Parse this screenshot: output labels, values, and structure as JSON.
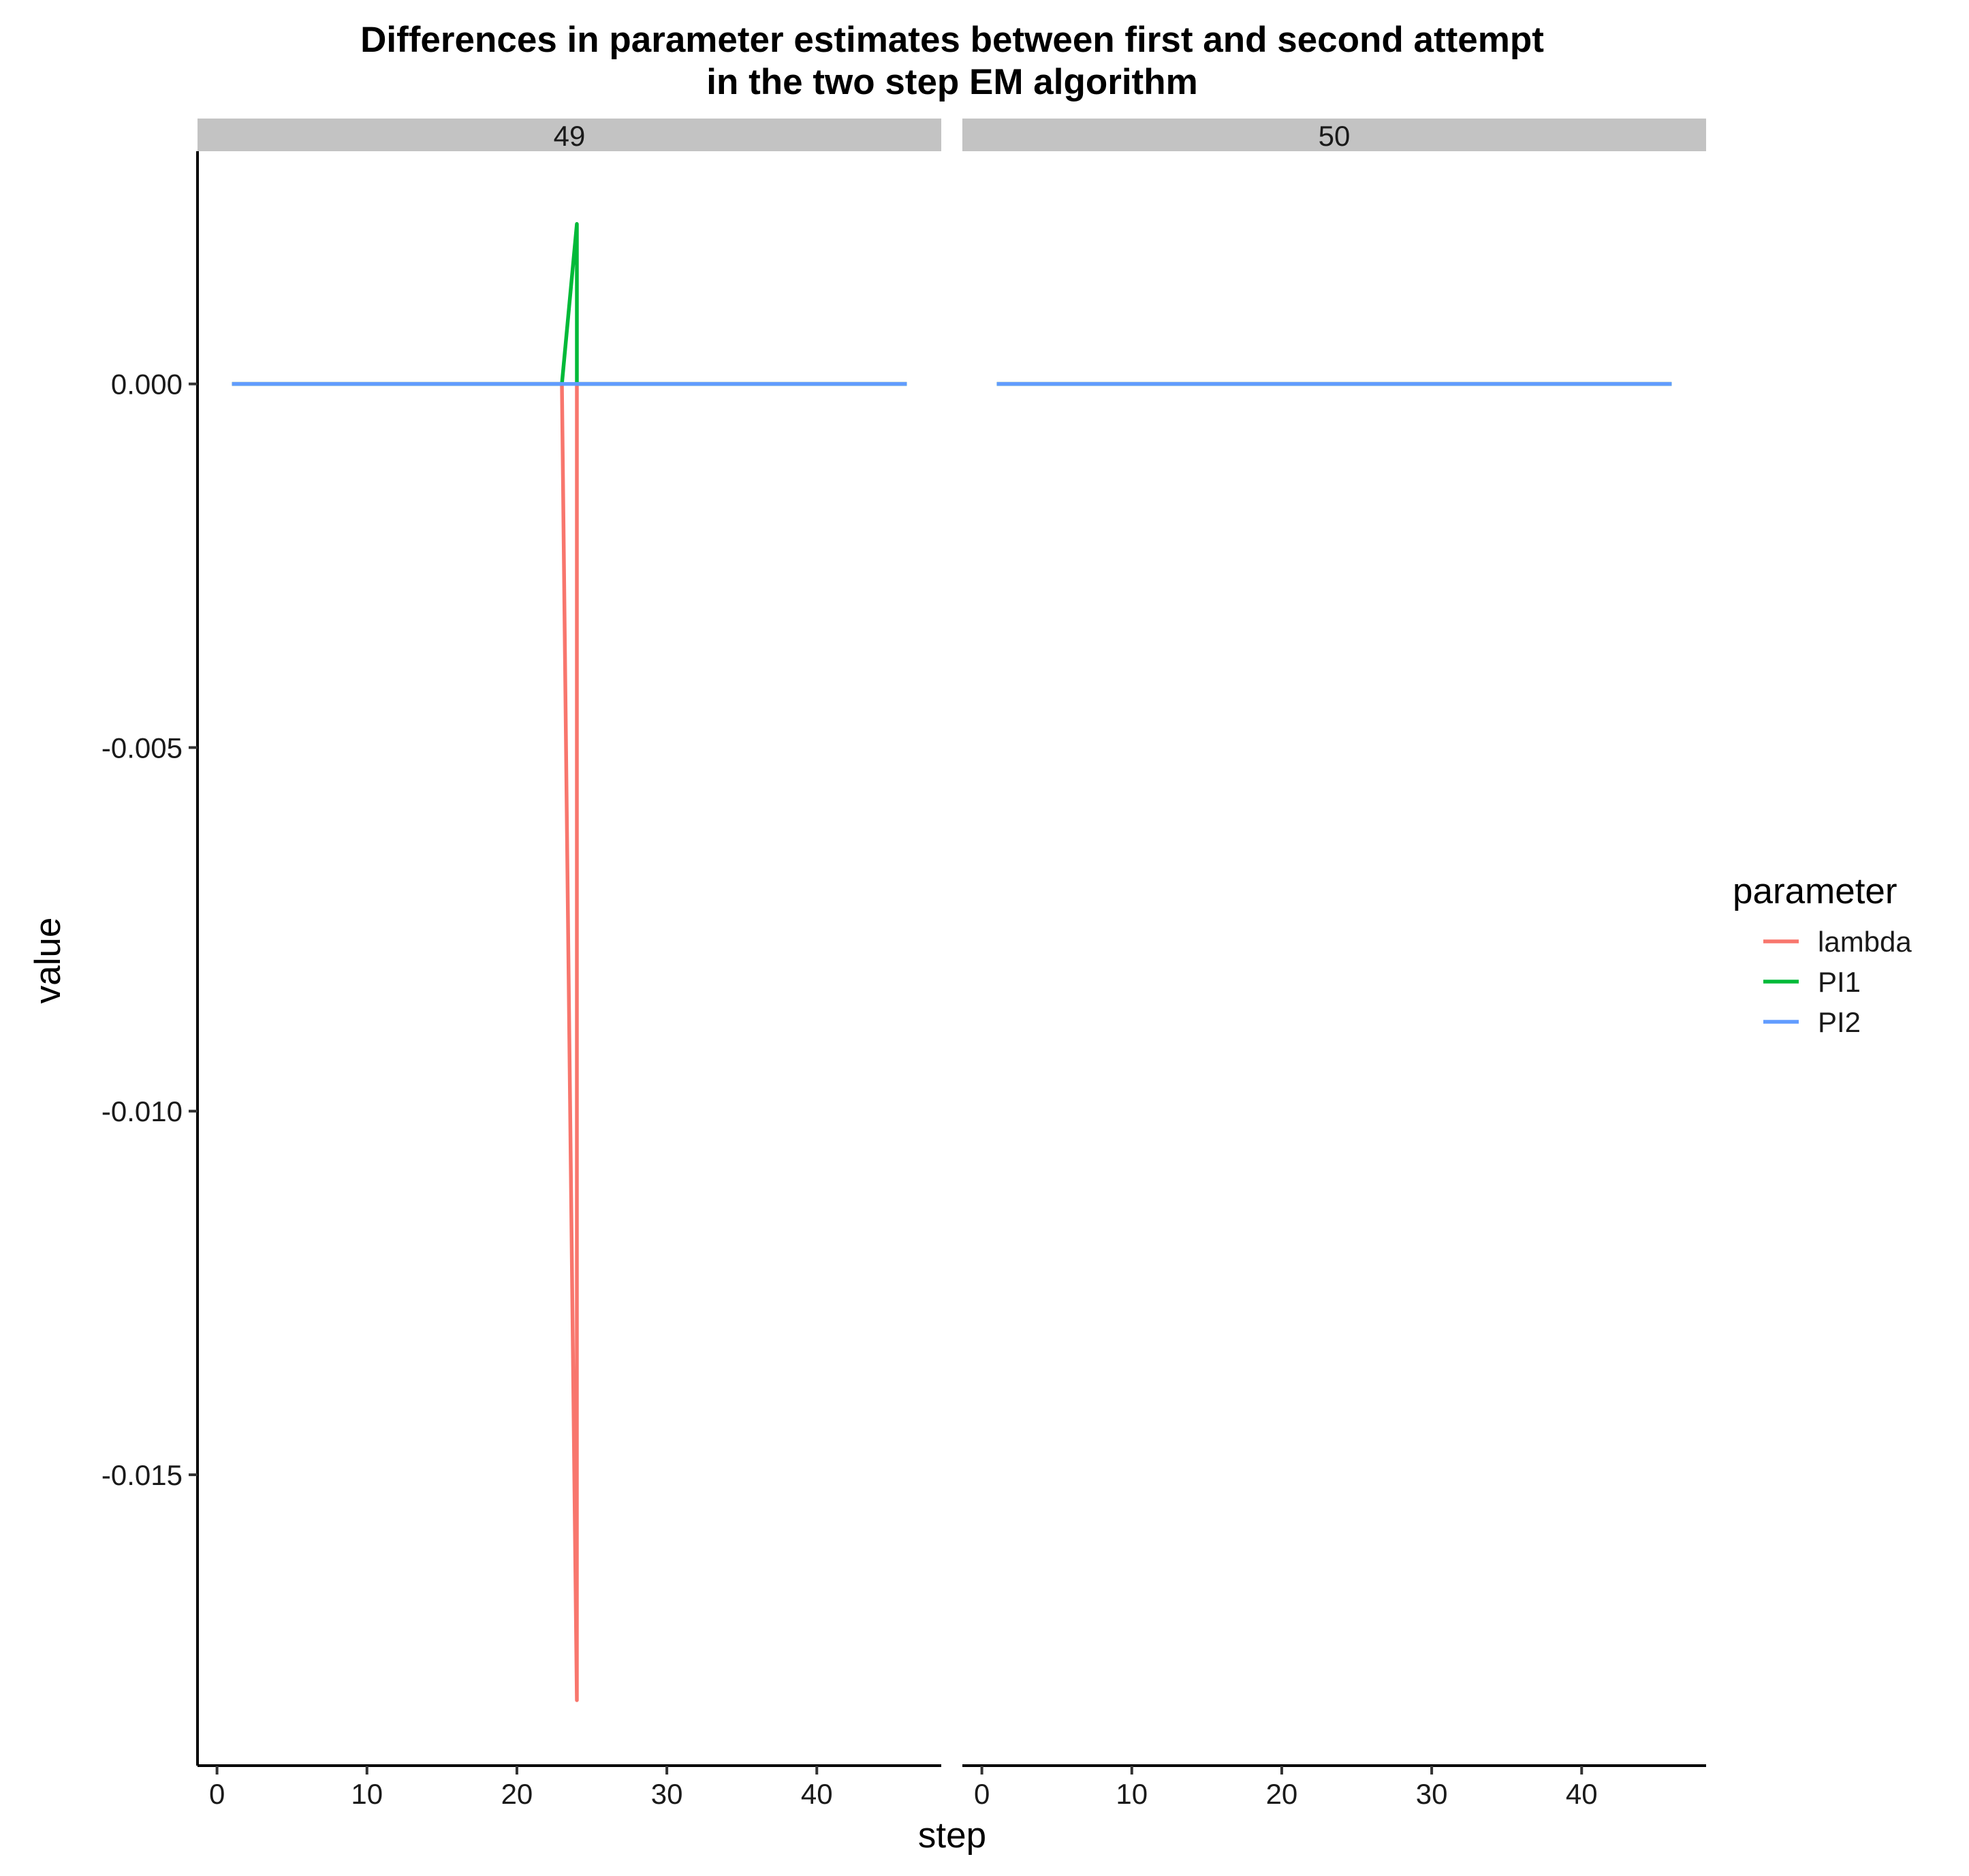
{
  "chart_data": {
    "type": "line",
    "title": "Differences in parameter estimates between first and second attempt",
    "subtitle": "in the two step EM algorithm",
    "xlabel": "step",
    "ylabel": "value",
    "xlim": [
      -1.3,
      48.3
    ],
    "ylim": [
      -0.019,
      0.0032
    ],
    "x_ticks": [
      0,
      10,
      20,
      30,
      40
    ],
    "y_ticks": [
      0.0,
      -0.005,
      -0.01,
      -0.015
    ],
    "y_tick_labels": [
      "0.000",
      "-0.005",
      "-0.010",
      "-0.015"
    ],
    "legend": {
      "title": "parameter",
      "position": "right"
    },
    "grid": false,
    "series_styles": [
      {
        "name": "lambda",
        "color": "#F8766D"
      },
      {
        "name": "PI1",
        "color": "#00BA38"
      },
      {
        "name": "PI2",
        "color": "#619CFF"
      }
    ],
    "facets": [
      {
        "label": "49",
        "series": [
          {
            "name": "lambda",
            "points": [
              [
                1,
                0
              ],
              [
                23,
                0
              ],
              [
                24,
                -0.0181
              ],
              [
                24,
                0
              ],
              [
                46,
                0
              ]
            ]
          },
          {
            "name": "PI1",
            "points": [
              [
                1,
                0
              ],
              [
                23,
                0
              ],
              [
                24,
                0.0022
              ],
              [
                24,
                0
              ],
              [
                46,
                0
              ]
            ]
          },
          {
            "name": "PI2",
            "points": [
              [
                1,
                0
              ],
              [
                46,
                0
              ]
            ]
          }
        ]
      },
      {
        "label": "50",
        "series": [
          {
            "name": "lambda",
            "points": [
              [
                1,
                0
              ],
              [
                46,
                0
              ]
            ]
          },
          {
            "name": "PI1",
            "points": [
              [
                1,
                0
              ],
              [
                46,
                0
              ]
            ]
          },
          {
            "name": "PI2",
            "points": [
              [
                1,
                0
              ],
              [
                46,
                0
              ]
            ]
          }
        ]
      }
    ]
  }
}
